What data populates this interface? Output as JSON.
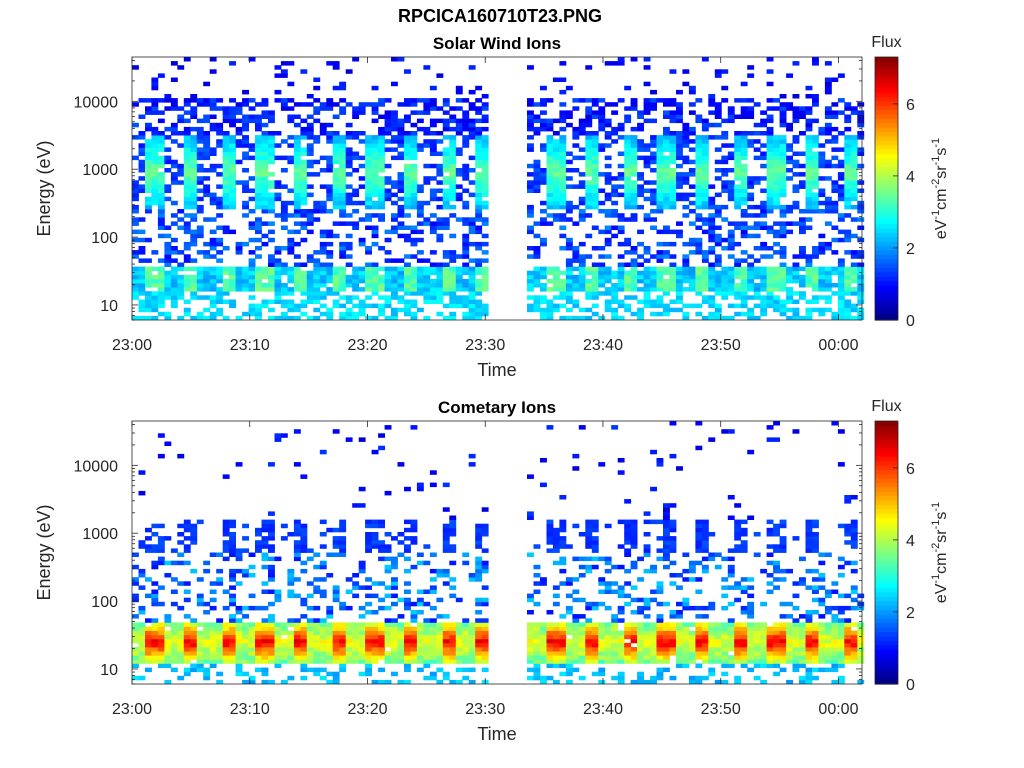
{
  "figure": {
    "title": "RPCICA160710T23.PNG"
  },
  "colorbar": {
    "label_html": [
      "eV",
      "-1",
      "cm",
      "-2",
      "sr",
      "-1",
      "s",
      "-1"
    ],
    "title": "Flux",
    "ticks": [
      "0",
      "2",
      "4",
      "6"
    ],
    "range": [
      0,
      7.3
    ]
  },
  "chart_data": [
    {
      "type": "heatmap",
      "title": "Solar Wind Ions",
      "xlabel": "Time",
      "ylabel": "Energy (eV)",
      "x_tick_labels": [
        "23:00",
        "23:10",
        "23:20",
        "23:30",
        "23:40",
        "23:50",
        "00:00"
      ],
      "x_range": [
        "23:00",
        "00:02"
      ],
      "y_tick_labels": [
        "10",
        "100",
        "1000",
        "10000"
      ],
      "y_scale": "log",
      "y_range": [
        6,
        45000
      ],
      "colorbar_label": "Flux",
      "data_gap": [
        "23:30",
        "23:33"
      ],
      "pattern": {
        "n_pulses": 19,
        "peak_energy_eV": 900,
        "peak_flux": 3.2,
        "low_energy_band_eV": [
          18,
          35
        ],
        "low_energy_flux": 3.0
      }
    },
    {
      "type": "heatmap",
      "title": "Cometary Ions",
      "xlabel": "Time",
      "ylabel": "Energy (eV)",
      "x_tick_labels": [
        "23:00",
        "23:10",
        "23:20",
        "23:30",
        "23:40",
        "23:50",
        "00:00"
      ],
      "x_range": [
        "23:00",
        "00:02"
      ],
      "y_tick_labels": [
        "10",
        "100",
        "1000",
        "10000"
      ],
      "y_scale": "log",
      "y_range": [
        6,
        45000
      ],
      "colorbar_label": "Flux",
      "data_gap": [
        "23:30",
        "23:33"
      ],
      "pattern": {
        "n_pulses": 19,
        "peak_energy_eV": 25,
        "peak_flux": 6.2,
        "mid_energy_band_eV": [
          600,
          1400
        ],
        "mid_energy_flux": 1.1
      }
    }
  ]
}
